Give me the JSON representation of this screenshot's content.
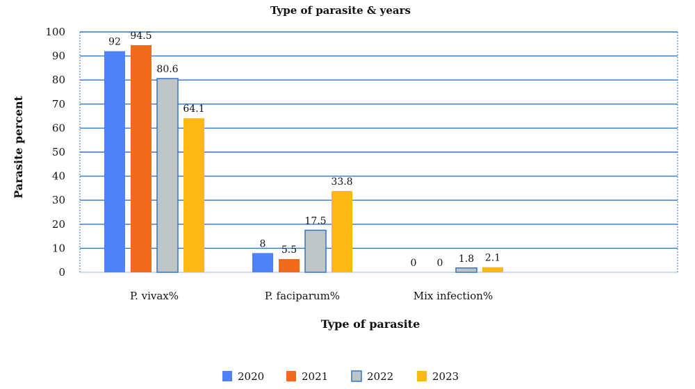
{
  "chart_data": {
    "type": "bar",
    "title": "Type of parasite & years",
    "xlabel": "Type of parasite",
    "ylabel": "Parasite percent",
    "categories": [
      "P. vivax%",
      "P. faciparum%",
      "Mix infection%"
    ],
    "series": [
      {
        "name": "2020",
        "values": [
          92,
          8,
          0
        ],
        "color": "#4F81F7"
      },
      {
        "name": "2021",
        "values": [
          94.5,
          5.5,
          0
        ],
        "color": "#F26B1D"
      },
      {
        "name": "2022",
        "values": [
          80.6,
          17.5,
          1.8
        ],
        "color": "#BFC5C4"
      },
      {
        "name": "2023",
        "values": [
          64.1,
          33.8,
          2.1
        ],
        "color": "#FDB913"
      }
    ],
    "data_labels": [
      [
        "92",
        "8",
        "0"
      ],
      [
        "94.5",
        "5.5",
        "0"
      ],
      [
        "80.6",
        "17.5",
        "1.8"
      ],
      [
        "64.1",
        "33.8",
        "2.1"
      ]
    ],
    "ylim": [
      0,
      100
    ],
    "yticks": [
      "0",
      "10",
      "20",
      "30",
      "40",
      "50",
      "60",
      "70",
      "80",
      "90",
      "100"
    ],
    "grid": true,
    "grid_color": "#2E75C6",
    "legend": "bottom"
  }
}
